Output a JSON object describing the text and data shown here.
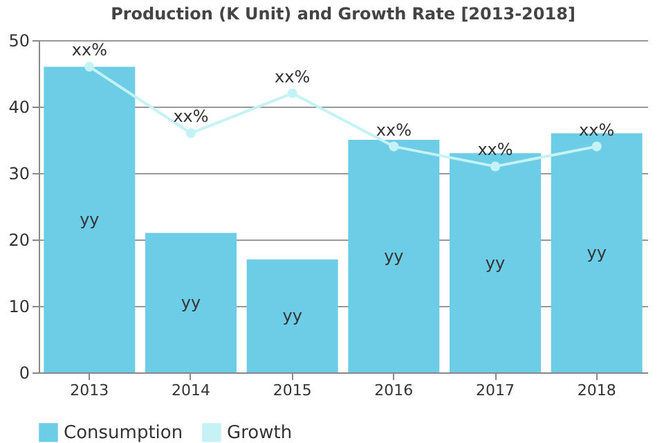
{
  "chart_data": {
    "type": "bar",
    "title": "Production (K Unit) and Growth Rate [2013-2018]",
    "categories": [
      "2013",
      "2014",
      "2015",
      "2016",
      "2017",
      "2018"
    ],
    "series": [
      {
        "name": "Consumption",
        "color": "#6dcce6",
        "values": [
          46,
          21,
          17,
          35,
          33,
          36
        ],
        "value_labels": [
          "yy",
          "yy",
          "yy",
          "yy",
          "yy",
          "yy"
        ]
      },
      {
        "name": "Growth",
        "type": "line",
        "color": "#c5f3f5",
        "values": [
          46,
          36,
          42,
          34,
          31,
          34
        ],
        "value_labels": [
          "xx%",
          "xx%",
          "xx%",
          "xx%",
          "xx%",
          "xx%"
        ]
      }
    ],
    "ylim": [
      0,
      50
    ],
    "yticks": [
      0,
      10,
      20,
      30,
      40,
      50
    ],
    "grid": "y",
    "legend": "bottom",
    "marker": "circle"
  }
}
